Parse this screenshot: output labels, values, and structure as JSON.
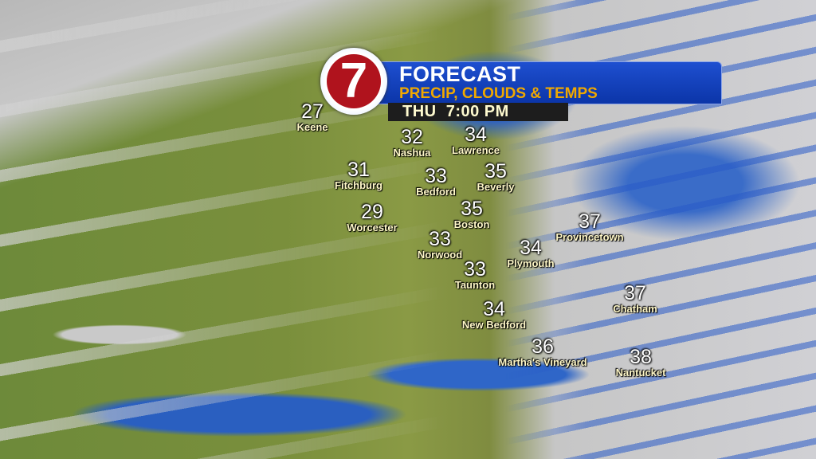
{
  "header": {
    "logo": "7",
    "title": "FORECAST",
    "subtitle": "PRECIP, CLOUDS & TEMPS",
    "time": "THU  7:00 PM"
  },
  "colors": {
    "banner": "#1e4fd0",
    "subtitle": "#f0a800",
    "logo_red": "#b0131d",
    "precip_blue": "#2f66c8"
  },
  "cities": [
    {
      "name": "Keene",
      "temp": "27"
    },
    {
      "name": "Nashua",
      "temp": "32"
    },
    {
      "name": "Lawrence",
      "temp": "34"
    },
    {
      "name": "Fitchburg",
      "temp": "31"
    },
    {
      "name": "Bedford",
      "temp": "33"
    },
    {
      "name": "Beverly",
      "temp": "35"
    },
    {
      "name": "Worcester",
      "temp": "29"
    },
    {
      "name": "Boston",
      "temp": "35"
    },
    {
      "name": "Norwood",
      "temp": "33"
    },
    {
      "name": "Plymouth",
      "temp": "34"
    },
    {
      "name": "Provincetown",
      "temp": "37"
    },
    {
      "name": "Taunton",
      "temp": "33"
    },
    {
      "name": "Chatham",
      "temp": "37"
    },
    {
      "name": "New Bedford",
      "temp": "34"
    },
    {
      "name": "Martha's Vineyard",
      "temp": "36"
    },
    {
      "name": "Nantucket",
      "temp": "38"
    }
  ]
}
